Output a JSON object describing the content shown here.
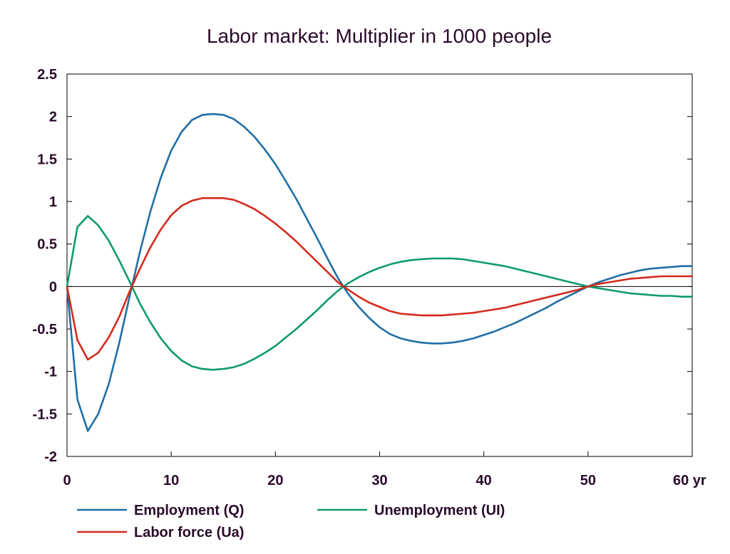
{
  "chart_data": {
    "type": "line",
    "title": "Labor market: Multiplier in 1000 people",
    "xlabel": "",
    "ylabel": "",
    "x_unit": "yr",
    "xlim": [
      0,
      60
    ],
    "ylim": [
      -2,
      2.5
    ],
    "x_ticks": [
      "0",
      "10",
      "20",
      "30",
      "40",
      "50",
      "60 yr"
    ],
    "y_ticks": [
      "2.5",
      "2",
      "1.5",
      "1",
      "0.5",
      "0",
      "-0.5",
      "-1",
      "-1.5",
      "-2"
    ],
    "grid": false,
    "legend_position": "bottom",
    "x": [
      0,
      1,
      2,
      3,
      4,
      5,
      6,
      7,
      8,
      9,
      10,
      11,
      12,
      13,
      14,
      15,
      16,
      17,
      18,
      19,
      20,
      21,
      22,
      23,
      24,
      25,
      26,
      27,
      28,
      29,
      30,
      31,
      32,
      33,
      34,
      35,
      36,
      37,
      38,
      39,
      40,
      41,
      42,
      43,
      44,
      45,
      46,
      47,
      48,
      49,
      50,
      51,
      52,
      53,
      54,
      55,
      56,
      57,
      58,
      59,
      60
    ],
    "series": [
      {
        "name": "Employment (Q)",
        "color": "#1f6fa6",
        "values": [
          0,
          -1.33,
          -1.7,
          -1.5,
          -1.15,
          -0.67,
          -0.12,
          0.41,
          0.88,
          1.28,
          1.6,
          1.82,
          1.96,
          2.02,
          2.03,
          2.02,
          1.97,
          1.88,
          1.76,
          1.61,
          1.44,
          1.24,
          1.03,
          0.8,
          0.57,
          0.33,
          0.1,
          -0.09,
          -0.24,
          -0.37,
          -0.48,
          -0.56,
          -0.61,
          -0.64,
          -0.66,
          -0.67,
          -0.67,
          -0.66,
          -0.64,
          -0.61,
          -0.57,
          -0.53,
          -0.48,
          -0.43,
          -0.37,
          -0.31,
          -0.25,
          -0.18,
          -0.12,
          -0.06,
          0,
          0.05,
          0.09,
          0.13,
          0.16,
          0.19,
          0.21,
          0.22,
          0.23,
          0.24,
          0.24
        ]
      },
      {
        "name": "Unemployment (UI)",
        "color": "#0e9a6e",
        "values": [
          0,
          0.7,
          0.83,
          0.72,
          0.54,
          0.31,
          0.06,
          -0.2,
          -0.42,
          -0.61,
          -0.76,
          -0.87,
          -0.94,
          -0.97,
          -0.98,
          -0.97,
          -0.95,
          -0.91,
          -0.85,
          -0.78,
          -0.7,
          -0.6,
          -0.5,
          -0.39,
          -0.28,
          -0.16,
          -0.05,
          0.04,
          0.11,
          0.17,
          0.22,
          0.26,
          0.29,
          0.31,
          0.32,
          0.33,
          0.33,
          0.33,
          0.32,
          0.3,
          0.28,
          0.26,
          0.24,
          0.21,
          0.18,
          0.15,
          0.12,
          0.09,
          0.06,
          0.03,
          0,
          -0.02,
          -0.04,
          -0.06,
          -0.08,
          -0.09,
          -0.1,
          -0.11,
          -0.11,
          -0.12,
          -0.12
        ]
      },
      {
        "name": "Labor force (Ua)",
        "color": "#d42a1c",
        "values": [
          0,
          -0.63,
          -0.86,
          -0.78,
          -0.6,
          -0.36,
          -0.06,
          0.21,
          0.46,
          0.67,
          0.84,
          0.95,
          1.01,
          1.04,
          1.04,
          1.04,
          1.02,
          0.97,
          0.91,
          0.83,
          0.74,
          0.64,
          0.53,
          0.41,
          0.29,
          0.17,
          0.05,
          -0.04,
          -0.12,
          -0.19,
          -0.24,
          -0.29,
          -0.32,
          -0.33,
          -0.34,
          -0.34,
          -0.34,
          -0.33,
          -0.32,
          -0.31,
          -0.29,
          -0.27,
          -0.25,
          -0.22,
          -0.19,
          -0.16,
          -0.13,
          -0.1,
          -0.07,
          -0.04,
          0,
          0.03,
          0.05,
          0.07,
          0.09,
          0.1,
          0.11,
          0.12,
          0.12,
          0.12,
          0.12
        ]
      }
    ]
  }
}
